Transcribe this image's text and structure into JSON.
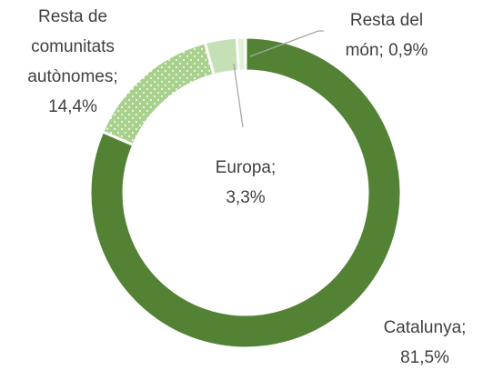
{
  "chart_data": {
    "type": "donut",
    "categories": [
      "Catalunya",
      "Resta de comunitats autònomes",
      "Europa",
      "Resta del món"
    ],
    "values": [
      81.5,
      14.4,
      3.3,
      0.9
    ],
    "value_labels": [
      "81,5%",
      "14,4%",
      "3,3%",
      "0,9%"
    ],
    "label_separator": ";",
    "colors": [
      "#548235",
      "#a9d18e",
      "#c5e0b4",
      "#e2f0d9"
    ],
    "patterns": [
      null,
      "dots",
      null,
      null
    ]
  }
}
